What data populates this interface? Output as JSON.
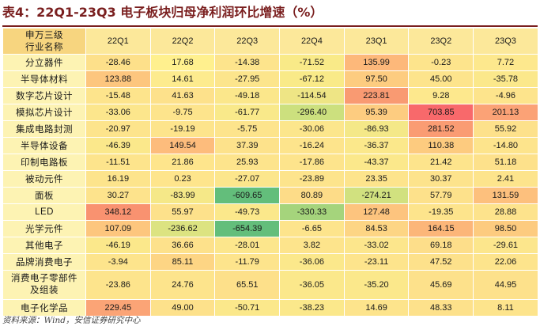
{
  "title": "表4：22Q1-23Q3 电子板块归母净利润环比增速（%）",
  "header": {
    "corner_line1": "申万三级",
    "corner_line2": "行业名称",
    "columns": [
      "22Q1",
      "22Q2",
      "22Q3",
      "22Q4",
      "23Q1",
      "23Q2",
      "23Q3"
    ]
  },
  "rows": [
    {
      "name": "分立器件",
      "values": [
        "-28.46",
        "17.68",
        "-14.38",
        "-71.52",
        "135.99",
        "-0.23",
        "7.72"
      ],
      "colors": [
        "#fde08a",
        "#fff08e",
        "#fde48c",
        "#f9ea88",
        "#fdb87a",
        "#fde48c",
        "#fde88d"
      ]
    },
    {
      "name": "半导体材料",
      "values": [
        "123.88",
        "14.61",
        "-27.95",
        "-67.12",
        "97.50",
        "45.00",
        "-35.78"
      ],
      "colors": [
        "#fdc67e",
        "#fdeb8e",
        "#fce58c",
        "#f9ea88",
        "#fdcc80",
        "#fde48c",
        "#fbe88b"
      ]
    },
    {
      "name": "数字芯片设计",
      "values": [
        "-15.48",
        "41.63",
        "-49.18",
        "-114.54",
        "223.81",
        "9.28",
        "-4.96"
      ],
      "colors": [
        "#fde48c",
        "#fde18b",
        "#fbe78b",
        "#eee585",
        "#f99a72",
        "#fde88d",
        "#fde48c"
      ]
    },
    {
      "name": "模拟芯片设计",
      "values": [
        "-33.06",
        "-9.75",
        "-61.77",
        "-296.40",
        "95.39",
        "703.85",
        "201.13"
      ],
      "colors": [
        "#fce68c",
        "#fde48c",
        "#f9e98a",
        "#cce07e",
        "#fdcc80",
        "#f8696b",
        "#fba276"
      ]
    },
    {
      "name": "集成电路封测",
      "values": [
        "-20.97",
        "-19.19",
        "-5.75",
        "-30.06",
        "-86.93",
        "281.52",
        "55.92"
      ],
      "colors": [
        "#fde48c",
        "#fde48c",
        "#fde48c",
        "#fce68c",
        "#f4e888",
        "#fa9c73",
        "#fde18b"
      ]
    },
    {
      "name": "半导体设备",
      "values": [
        "-46.39",
        "149.54",
        "37.39",
        "-16.24",
        "-36.37",
        "110.38",
        "-14.80"
      ],
      "colors": [
        "#fbe88b",
        "#fdbc7c",
        "#fde28b",
        "#fde48c",
        "#fbe88b",
        "#fdcb7f",
        "#fde48c"
      ]
    },
    {
      "name": "印制电路板",
      "values": [
        "-11.51",
        "21.86",
        "25.93",
        "-17.86",
        "-43.37",
        "21.42",
        "51.18"
      ],
      "colors": [
        "#fde48c",
        "#fee58c",
        "#fde48c",
        "#fde48c",
        "#fbe88b",
        "#fde48c",
        "#fde18b"
      ]
    },
    {
      "name": "被动元件",
      "values": [
        "16.19",
        "0.23",
        "-27.07",
        "-23.89",
        "23.35",
        "30.37",
        "2.41"
      ],
      "colors": [
        "#fde48c",
        "#fee58c",
        "#fce68c",
        "#fde48c",
        "#fde48c",
        "#fde38c",
        "#fde48c"
      ]
    },
    {
      "name": "面板",
      "values": [
        "30.27",
        "-83.99",
        "-609.65",
        "80.89",
        "-274.21",
        "57.79",
        "131.59"
      ],
      "colors": [
        "#fde38c",
        "#f5e888",
        "#63be7b",
        "#fddc88",
        "#d1e17f",
        "#fde18b",
        "#fdc07d"
      ]
    },
    {
      "name": "LED",
      "values": [
        "348.12",
        "55.97",
        "-49.73",
        "-330.33",
        "127.48",
        "-19.35",
        "28.88"
      ],
      "colors": [
        "#f99270",
        "#fde18b",
        "#fbe88b",
        "#a5d47c",
        "#fdc47e",
        "#fde48c",
        "#fde38c"
      ]
    },
    {
      "name": "光学元件",
      "values": [
        "107.09",
        "-236.62",
        "-654.39",
        "-6.65",
        "84.53",
        "164.15",
        "98.50"
      ],
      "colors": [
        "#fdc67e",
        "#dce381",
        "#63be7b",
        "#fde48c",
        "#fdd584",
        "#fcb679",
        "#fdcb7f"
      ]
    },
    {
      "name": "其他电子",
      "values": [
        "-46.19",
        "36.66",
        "-28.01",
        "3.82",
        "-33.02",
        "69.18",
        "-29.61"
      ],
      "colors": [
        "#fbe88b",
        "#fde18b",
        "#fce68c",
        "#fde48c",
        "#fce68c",
        "#fdde8a",
        "#fce68c"
      ]
    },
    {
      "name": "品牌消费电子",
      "values": [
        "-3.94",
        "85.11",
        "-11.79",
        "-36.06",
        "-23.11",
        "47.52",
        "22.06"
      ],
      "colors": [
        "#fde48c",
        "#fdd584",
        "#fde48c",
        "#fbe88b",
        "#fde48c",
        "#fde18b",
        "#fde48c"
      ]
    },
    {
      "name": "消费电子零部件及组装",
      "name_line1": "消费电子零部件",
      "name_line2": "及组装",
      "values": [
        "-23.86",
        "24.76",
        "65.51",
        "-36.05",
        "-35.20",
        "45.69",
        "44.95"
      ],
      "colors": [
        "#fde48c",
        "#fde48c",
        "#fde08a",
        "#fbe88b",
        "#fbe88b",
        "#fde18b",
        "#fde18b"
      ]
    },
    {
      "name": "电子化学品",
      "values": [
        "229.45",
        "49.00",
        "-50.71",
        "-38.23",
        "14.69",
        "48.33",
        "8.11"
      ],
      "colors": [
        "#fba476",
        "#fde18b",
        "#fbe88b",
        "#fbe88b",
        "#fde48c",
        "#fde18b",
        "#fde48c"
      ]
    }
  ],
  "header_colors": {
    "corner": "#f7d57f",
    "column": "#fce89a"
  },
  "rowhead_color": "#fdf3b3",
  "source": "资料来源：Wind，安信证券研究中心"
}
